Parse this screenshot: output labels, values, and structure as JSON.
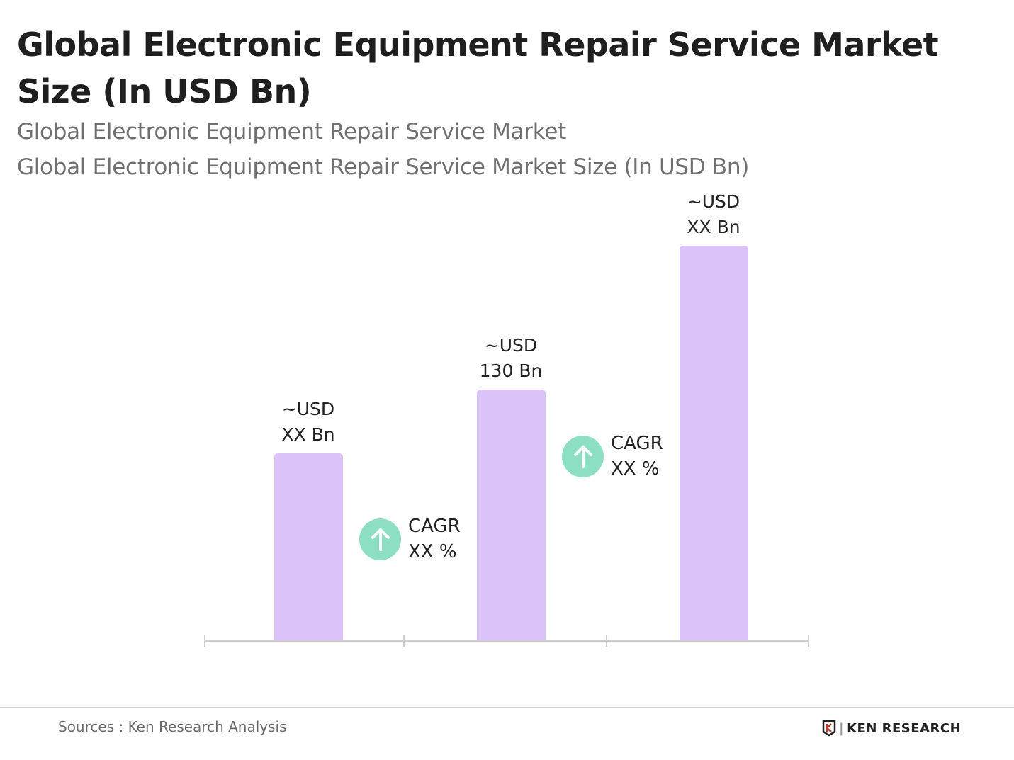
{
  "title": "Global Electronic Equipment Repair Service Market Size (In USD Bn)",
  "subtitle1": "Global Electronic Equipment Repair Service Market",
  "subtitle2": "Global Electronic Equipment Repair Service Market Size (In USD Bn)",
  "chart_data": {
    "type": "bar",
    "title": "Global Electronic Equipment Repair Service Market Size (In USD Bn)",
    "categories": [
      "",
      "",
      ""
    ],
    "values": [
      97,
      130,
      204
    ],
    "data_labels": [
      [
        "~USD",
        "XX Bn"
      ],
      [
        "~USD",
        "130 Bn"
      ],
      [
        "~USD",
        "XX Bn"
      ]
    ],
    "ylim": [
      0,
      210
    ],
    "grid": false,
    "bar_color": "#dcc3f7",
    "annotations": [
      {
        "icon": "arrow-up-icon",
        "line1": "CAGR",
        "line2": "XX %",
        "color": "#8ddfc4"
      },
      {
        "icon": "arrow-up-icon",
        "line1": "CAGR",
        "line2": "XX %",
        "color": "#8ddfc4"
      }
    ]
  },
  "footer": {
    "source": "Sources : Ken Research Analysis",
    "logo": "KEN RESEARCH"
  }
}
